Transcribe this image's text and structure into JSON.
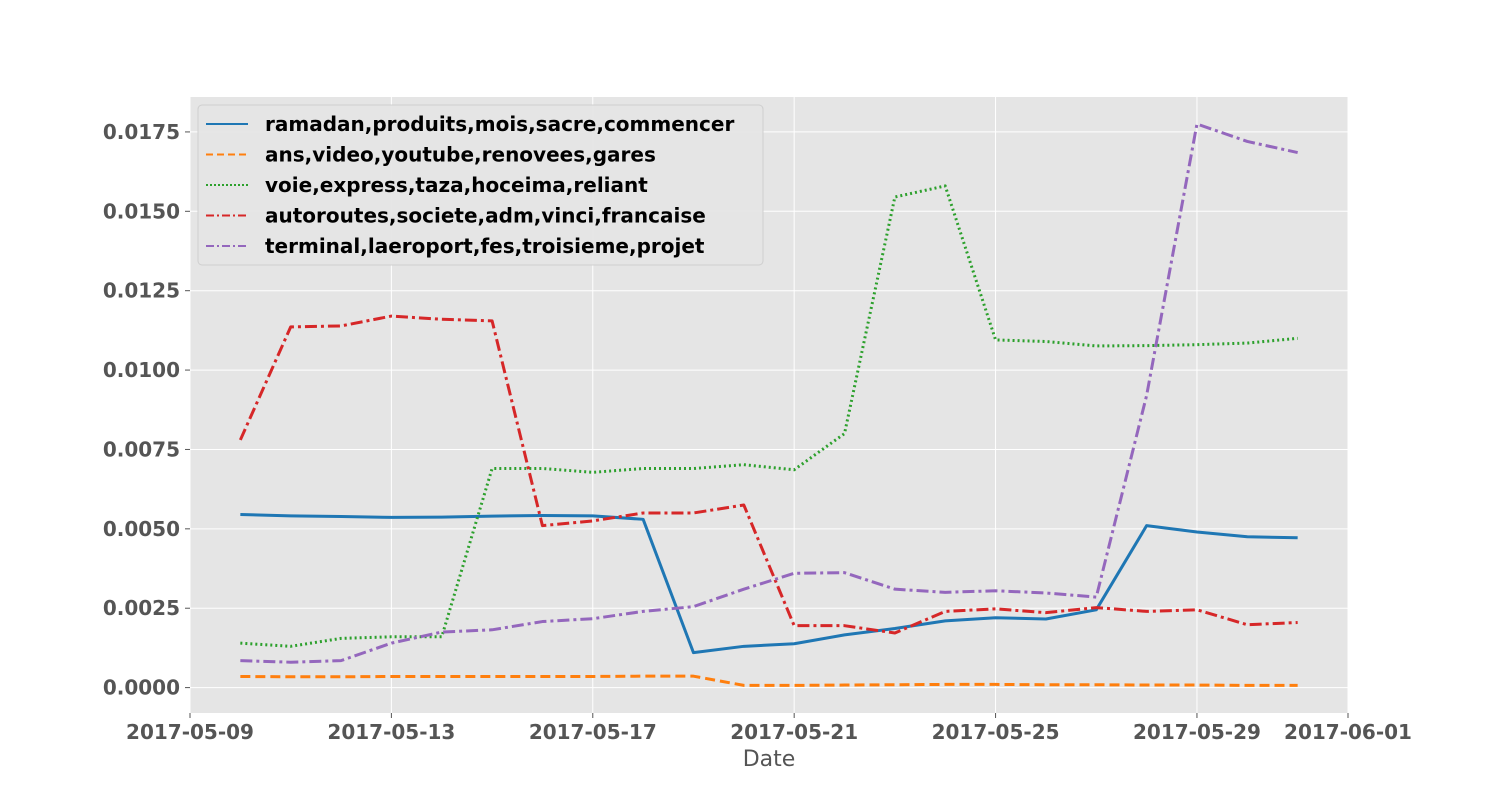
{
  "chart_data": {
    "type": "line",
    "xlabel": "Date",
    "ylabel": "",
    "x_range": [
      "2017-05-09",
      "2017-06-01"
    ],
    "ylim": [
      -0.0008,
      0.0186
    ],
    "x_ticks": [
      "2017-05-09",
      "2017-05-13",
      "2017-05-17",
      "2017-05-21",
      "2017-05-25",
      "2017-05-29",
      "2017-06-01"
    ],
    "y_ticks": [
      "0.0000",
      "0.0025",
      "0.0050",
      "0.0075",
      "0.0100",
      "0.0125",
      "0.0150",
      "0.0175"
    ],
    "grid": true,
    "legend_position": "top-left",
    "x": [
      "2017-05-10",
      "2017-05-11",
      "2017-05-12",
      "2017-05-13",
      "2017-05-14",
      "2017-05-15",
      "2017-05-16",
      "2017-05-17",
      "2017-05-18",
      "2017-05-19",
      "2017-05-20",
      "2017-05-21",
      "2017-05-22",
      "2017-05-23",
      "2017-05-24",
      "2017-05-25",
      "2017-05-26",
      "2017-05-27",
      "2017-05-28",
      "2017-05-29",
      "2017-05-30",
      "2017-05-31"
    ],
    "series": [
      {
        "name": "ramadan,produits,mois,sacre,commencer",
        "color": "#1f77b4",
        "dash": "solid",
        "values": [
          0.00545,
          0.00541,
          0.00539,
          0.00536,
          0.00537,
          0.0054,
          0.00542,
          0.00541,
          0.0053,
          0.0011,
          0.0013,
          0.00138,
          0.00166,
          0.00186,
          0.0021,
          0.0022,
          0.00216,
          0.00245,
          0.0051,
          0.0049,
          0.00475,
          0.00472
        ]
      },
      {
        "name": "ans,video,youtube,renovees,gares",
        "color": "#ff7f0e",
        "dash": "dashed",
        "values": [
          0.00035,
          0.00034,
          0.00034,
          0.00035,
          0.00035,
          0.00035,
          0.00035,
          0.00035,
          0.00036,
          0.00036,
          7e-05,
          7e-05,
          8e-05,
          9e-05,
          0.0001,
          0.0001,
          9e-05,
          9e-05,
          8e-05,
          8e-05,
          7e-05,
          7e-05
        ]
      },
      {
        "name": "voie,express,taza,hoceima,reliant",
        "color": "#2ca02c",
        "dash": "dotted",
        "values": [
          0.0014,
          0.0013,
          0.00155,
          0.0016,
          0.0016,
          0.0069,
          0.0069,
          0.00678,
          0.0069,
          0.0069,
          0.00702,
          0.00686,
          0.008,
          0.01545,
          0.0158,
          0.01095,
          0.0109,
          0.01076,
          0.01077,
          0.0108,
          0.01085,
          0.011
        ]
      },
      {
        "name": "autoroutes,societe,adm,vinci,francaise",
        "color": "#d62728",
        "dash": "dashdot",
        "values": [
          0.0078,
          0.01136,
          0.01139,
          0.0117,
          0.0116,
          0.01155,
          0.0051,
          0.00525,
          0.0055,
          0.0055,
          0.00575,
          0.00195,
          0.00195,
          0.00172,
          0.0024,
          0.00248,
          0.00236,
          0.00252,
          0.0024,
          0.00245,
          0.00198,
          0.00205
        ]
      },
      {
        "name": "terminal,laeroport,fes,troisieme,projet",
        "color": "#9467bd",
        "dash": "dashdot",
        "values": [
          0.00085,
          0.0008,
          0.00085,
          0.0014,
          0.00175,
          0.00182,
          0.00208,
          0.00217,
          0.0024,
          0.00255,
          0.0031,
          0.0036,
          0.00362,
          0.0031,
          0.003,
          0.00305,
          0.00298,
          0.00285,
          0.0092,
          0.01775,
          0.0172,
          0.01685
        ]
      }
    ]
  }
}
